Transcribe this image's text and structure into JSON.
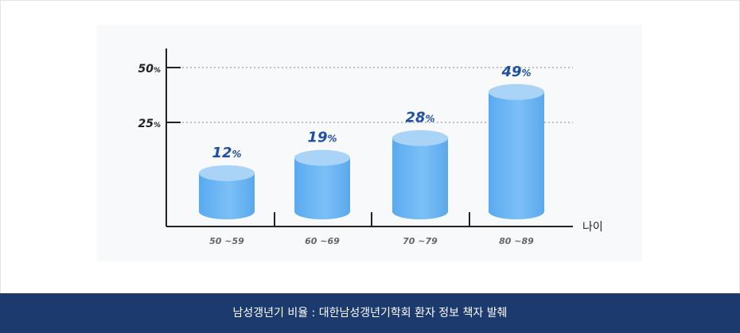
{
  "chart_data": {
    "type": "bar",
    "categories": [
      "50 ~59",
      "60 ~69",
      "70 ~79",
      "80 ~89"
    ],
    "values": [
      12,
      19,
      28,
      49
    ],
    "value_suffix": "%",
    "xlabel": "나이",
    "ylabel": "",
    "ylim": [
      0,
      60
    ],
    "yticks": [
      25,
      50
    ],
    "ytick_suffix": "%",
    "grid": "dotted at ticks",
    "colors": {
      "bar": "#6cb4ef",
      "bar_top": "#a9d4f7",
      "value_label": "#1f4fa2",
      "footer_bg": "#1c3a6e"
    }
  },
  "footer": {
    "caption": "남성갱년기 비율 : 대한남성갱년기학회 환자 정보 책자 발췌"
  }
}
